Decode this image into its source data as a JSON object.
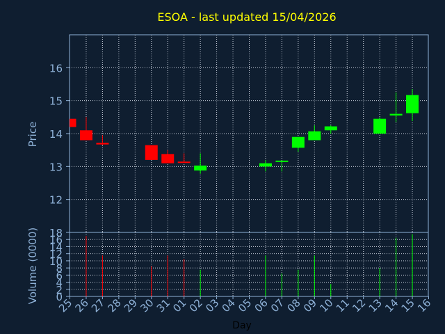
{
  "chart_data": {
    "type": "candlestick",
    "title": "ESOA - last updated 15/04/2026",
    "xlabel": "Day",
    "ylabel": "Price",
    "volume_label": "Volume (0000)",
    "grid": true,
    "ylim": [
      11,
      17
    ],
    "price_ticks": [
      12,
      13,
      14,
      15,
      16
    ],
    "volume_ylim": [
      0,
      18
    ],
    "volume_ticks": [
      0,
      2,
      4,
      6,
      8,
      10,
      12,
      14,
      16,
      18
    ],
    "x_labels": [
      "25",
      "26",
      "27",
      "28",
      "29",
      "30",
      "31",
      "01",
      "02",
      "03",
      "04",
      "05",
      "06",
      "07",
      "08",
      "09",
      "10",
      "11",
      "12",
      "13",
      "14",
      "15",
      "16"
    ],
    "up_color": "#00ff00",
    "down_color": "#ff0000",
    "background_color": "#0f1e30",
    "candles": [
      {
        "day": "25",
        "open": 14.45,
        "high": 14.45,
        "low": 14.2,
        "close": 14.2,
        "volume": 0
      },
      {
        "day": "26",
        "open": 14.1,
        "high": 14.5,
        "low": 13.8,
        "close": 13.8,
        "volume": 17
      },
      {
        "day": "27",
        "open": 13.72,
        "high": 13.95,
        "low": 13.65,
        "close": 13.67,
        "volume": 11.5
      },
      {
        "day": "30",
        "open": 13.65,
        "high": 13.65,
        "low": 13.2,
        "close": 13.2,
        "volume": 8.5
      },
      {
        "day": "31",
        "open": 13.38,
        "high": 13.5,
        "low": 13.1,
        "close": 13.1,
        "volume": 11.5
      },
      {
        "day": "01",
        "open": 13.15,
        "high": 13.4,
        "low": 13.12,
        "close": 13.12,
        "volume": 10.5
      },
      {
        "day": "02",
        "open": 12.88,
        "high": 13.4,
        "low": 12.78,
        "close": 13.03,
        "volume": 7.5
      },
      {
        "day": "06",
        "open": 13.0,
        "high": 13.2,
        "low": 12.85,
        "close": 13.1,
        "volume": 11.5
      },
      {
        "day": "07",
        "open": 13.15,
        "high": 13.18,
        "low": 12.85,
        "close": 13.18,
        "volume": 6.5
      },
      {
        "day": "08",
        "open": 13.57,
        "high": 13.9,
        "low": 13.45,
        "close": 13.9,
        "volume": 7.5
      },
      {
        "day": "09",
        "open": 13.8,
        "high": 14.25,
        "low": 13.8,
        "close": 14.07,
        "volume": 11.5
      },
      {
        "day": "10",
        "open": 14.1,
        "high": 14.25,
        "low": 14.0,
        "close": 14.22,
        "volume": 3.5
      },
      {
        "day": "13",
        "open": 14.0,
        "high": 14.5,
        "low": 14.0,
        "close": 14.45,
        "volume": 8.0
      },
      {
        "day": "14",
        "open": 14.55,
        "high": 15.25,
        "low": 14.35,
        "close": 14.6,
        "volume": 16.5
      },
      {
        "day": "15",
        "open": 14.62,
        "high": 15.35,
        "low": 14.38,
        "close": 15.17,
        "volume": 17.5
      }
    ]
  }
}
